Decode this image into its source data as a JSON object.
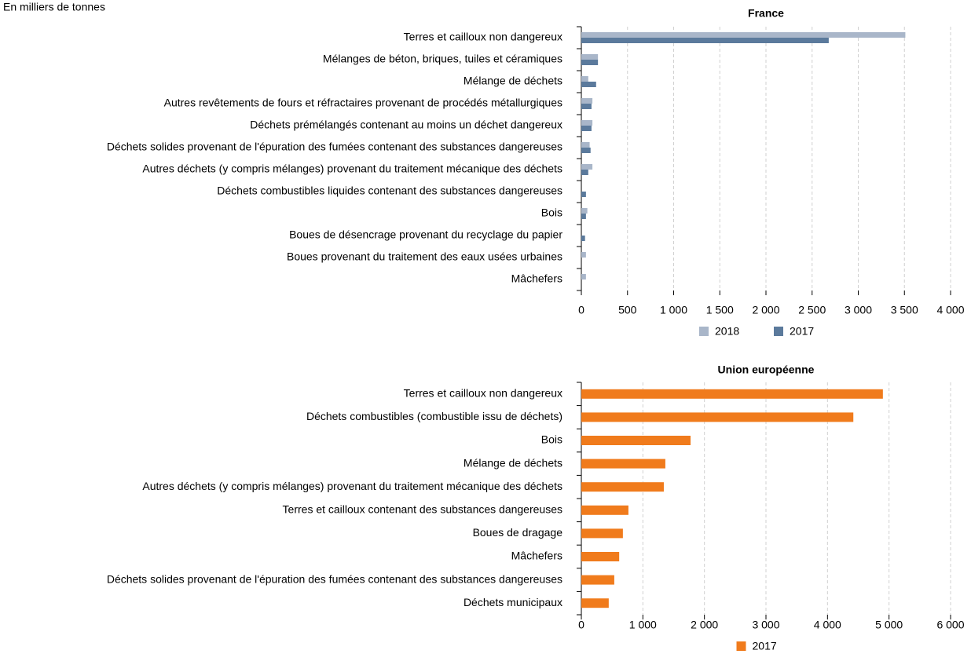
{
  "header": {
    "note": "En milliers de tonnes"
  },
  "chart_data": [
    {
      "type": "hbar",
      "title": "France",
      "categories": [
        "Terres et cailloux non dangereux",
        "Mélanges de béton, briques, tuiles et céramiques",
        "Mélange de déchets",
        "Autres revêtements de fours et réfractaires provenant de procédés métallurgiques",
        "Déchets prémélangés contenant au moins un déchet dangereux",
        "Déchets solides provenant de l'épuration des fumées contenant des substances dangereuses",
        "Autres déchets (y compris mélanges) provenant du traitement mécanique des déchets",
        "Déchets combustibles liquides contenant des substances dangereuses",
        "Bois",
        "Boues de désencrage provenant du recyclage du papier",
        "Boues provenant du traitement des eaux usées urbaines",
        "Mâchefers"
      ],
      "series": [
        {
          "name": "2018",
          "color": "#a9b6c9",
          "values": [
            3510,
            180,
            75,
            120,
            120,
            90,
            120,
            null,
            65,
            null,
            50,
            50
          ]
        },
        {
          "name": "2017",
          "color": "#5b7a9c",
          "values": [
            2680,
            180,
            160,
            110,
            110,
            100,
            75,
            50,
            50,
            40,
            null,
            null
          ]
        }
      ],
      "xlim": [
        0,
        4000
      ],
      "xticks": [
        0,
        500,
        {
          "value": 1000,
          "label": "1 000"
        },
        {
          "value": 1500,
          "label": "1 500"
        },
        {
          "value": 2000,
          "label": "2 000"
        },
        {
          "value": 2500,
          "label": "2 500"
        },
        {
          "value": 3000,
          "label": "3 000"
        },
        {
          "value": 3500,
          "label": "3 500"
        },
        {
          "value": 4000,
          "label": "4 000"
        }
      ],
      "grid": true
    },
    {
      "type": "hbar",
      "title": "Union européenne",
      "categories": [
        "Terres et cailloux non dangereux",
        "Déchets combustibles (combustible issu de déchets)",
        "Bois",
        "Mélange de déchets",
        "Autres déchets (y compris mélanges) provenant du traitement mécanique des déchets",
        "Terres et cailloux contenant des substances dangereuses",
        "Boues de dragage",
        "Mâchefers",
        "Déchets solides provenant de l'épuration des fumées contenant des substances dangereuses",
        "Déchets municipaux"
      ],
      "series": [
        {
          "name": "2017",
          "color": "#f07b1c",
          "values": [
            4900,
            4420,
            1775,
            1365,
            1340,
            765,
            675,
            615,
            535,
            445
          ]
        }
      ],
      "xlim": [
        0,
        6000
      ],
      "xticks": [
        0,
        {
          "value": 1000,
          "label": "1 000"
        },
        {
          "value": 2000,
          "label": "2 000"
        },
        {
          "value": 3000,
          "label": "3 000"
        },
        {
          "value": 4000,
          "label": "4 000"
        },
        {
          "value": 5000,
          "label": "5 000"
        },
        {
          "value": 6000,
          "label": "6 000"
        }
      ],
      "grid": true
    }
  ]
}
